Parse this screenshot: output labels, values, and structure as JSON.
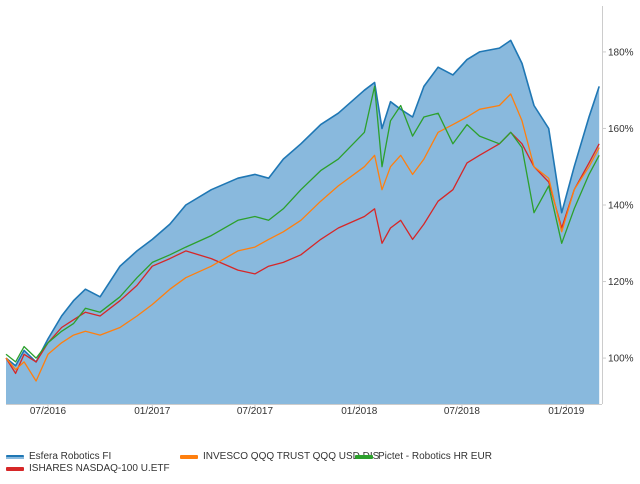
{
  "chart_data": {
    "type": "line",
    "title": "",
    "xlabel": "",
    "ylabel": "",
    "y_unit": "%",
    "ylim": [
      88,
      192
    ],
    "xlim": [
      "2016-04-18",
      "2019-03-05"
    ],
    "grid": false,
    "legend_position": "bottom",
    "x_ticks": [
      {
        "date": "2016-07-01",
        "label": "07/2016"
      },
      {
        "date": "2017-01-01",
        "label": "01/2017"
      },
      {
        "date": "2017-07-01",
        "label": "07/2017"
      },
      {
        "date": "2018-01-01",
        "label": "01/2018"
      },
      {
        "date": "2018-07-01",
        "label": "07/2018"
      },
      {
        "date": "2019-01-01",
        "label": "01/2019"
      }
    ],
    "y_ticks": [
      {
        "value": 100,
        "label": "100%"
      },
      {
        "value": 120,
        "label": "120%"
      },
      {
        "value": 140,
        "label": "140%"
      },
      {
        "value": 160,
        "label": "160%"
      },
      {
        "value": 180,
        "label": "180%"
      }
    ],
    "series": [
      {
        "name": "Esfera Robotics FI",
        "style": "area",
        "color": "#1f77b4",
        "fill": "#89b9dd",
        "x": [
          "2016-04-18",
          "2016-05-05",
          "2016-05-20",
          "2016-06-10",
          "2016-07-01",
          "2016-07-25",
          "2016-08-15",
          "2016-09-05",
          "2016-10-01",
          "2016-11-05",
          "2016-12-05",
          "2017-01-01",
          "2017-02-01",
          "2017-03-01",
          "2017-04-15",
          "2017-06-01",
          "2017-07-01",
          "2017-07-25",
          "2017-08-20",
          "2017-09-20",
          "2017-10-25",
          "2017-11-25",
          "2018-01-10",
          "2018-01-28",
          "2018-02-10",
          "2018-02-25",
          "2018-03-15",
          "2018-04-05",
          "2018-04-25",
          "2018-05-20",
          "2018-06-15",
          "2018-07-10",
          "2018-08-01",
          "2018-09-05",
          "2018-09-25",
          "2018-10-15",
          "2018-11-05",
          "2018-12-01",
          "2018-12-24",
          "2019-01-15",
          "2019-02-10",
          "2019-02-28"
        ],
        "y": [
          100,
          98,
          102,
          99,
          105,
          111,
          115,
          118,
          116,
          124,
          128,
          131,
          135,
          140,
          144,
          147,
          148,
          147,
          152,
          156,
          161,
          164,
          170,
          172,
          160,
          167,
          165,
          163,
          171,
          176,
          174,
          178,
          180,
          181,
          183,
          177,
          166,
          160,
          138,
          150,
          163,
          171
        ]
      },
      {
        "name": "ISHARES NASDAQ-100 U.ETF",
        "style": "line",
        "color": "#d62728",
        "x": [
          "2016-04-18",
          "2016-05-05",
          "2016-05-20",
          "2016-06-10",
          "2016-07-01",
          "2016-07-25",
          "2016-08-15",
          "2016-09-05",
          "2016-10-01",
          "2016-11-05",
          "2016-12-05",
          "2017-01-01",
          "2017-02-01",
          "2017-03-01",
          "2017-04-15",
          "2017-06-01",
          "2017-07-01",
          "2017-07-25",
          "2017-08-20",
          "2017-09-20",
          "2017-10-25",
          "2017-11-25",
          "2018-01-10",
          "2018-01-28",
          "2018-02-10",
          "2018-02-25",
          "2018-03-15",
          "2018-04-05",
          "2018-04-25",
          "2018-05-20",
          "2018-06-15",
          "2018-07-10",
          "2018-08-01",
          "2018-09-05",
          "2018-09-25",
          "2018-10-15",
          "2018-11-05",
          "2018-12-01",
          "2018-12-24",
          "2019-01-15",
          "2019-02-10",
          "2019-02-28"
        ],
        "y": [
          100,
          96,
          101,
          99,
          104,
          108,
          110,
          112,
          111,
          115,
          119,
          124,
          126,
          128,
          126,
          123,
          122,
          124,
          125,
          127,
          131,
          134,
          137,
          139,
          130,
          134,
          136,
          131,
          135,
          141,
          144,
          151,
          153,
          156,
          159,
          156,
          150,
          146,
          134,
          144,
          151,
          156
        ]
      },
      {
        "name": "INVESCO QQQ TRUST QQQ USD DIS",
        "style": "line",
        "color": "#ff7f0e",
        "x": [
          "2016-04-18",
          "2016-05-05",
          "2016-05-20",
          "2016-06-10",
          "2016-07-01",
          "2016-07-25",
          "2016-08-15",
          "2016-09-05",
          "2016-10-01",
          "2016-11-05",
          "2016-12-05",
          "2017-01-01",
          "2017-02-01",
          "2017-03-01",
          "2017-04-15",
          "2017-06-01",
          "2017-07-01",
          "2017-07-25",
          "2017-08-20",
          "2017-09-20",
          "2017-10-25",
          "2017-11-25",
          "2018-01-10",
          "2018-01-28",
          "2018-02-10",
          "2018-02-25",
          "2018-03-15",
          "2018-04-05",
          "2018-04-25",
          "2018-05-20",
          "2018-06-15",
          "2018-07-10",
          "2018-08-01",
          "2018-09-05",
          "2018-09-25",
          "2018-10-15",
          "2018-11-05",
          "2018-12-01",
          "2018-12-24",
          "2019-01-15",
          "2019-02-10",
          "2019-02-28"
        ],
        "y": [
          100,
          97,
          99,
          94,
          101,
          104,
          106,
          107,
          106,
          108,
          111,
          114,
          118,
          121,
          124,
          128,
          129,
          131,
          133,
          136,
          141,
          145,
          150,
          153,
          144,
          150,
          153,
          148,
          152,
          159,
          161,
          163,
          165,
          166,
          169,
          162,
          150,
          147,
          133,
          144,
          150,
          155
        ]
      },
      {
        "name": "Pictet - Robotics HR EUR",
        "style": "line",
        "color": "#2ca02c",
        "x": [
          "2016-04-18",
          "2016-05-05",
          "2016-05-20",
          "2016-06-10",
          "2016-07-01",
          "2016-07-25",
          "2016-08-15",
          "2016-09-05",
          "2016-10-01",
          "2016-11-05",
          "2016-12-05",
          "2017-01-01",
          "2017-02-01",
          "2017-03-01",
          "2017-04-15",
          "2017-06-01",
          "2017-07-01",
          "2017-07-25",
          "2017-08-20",
          "2017-09-20",
          "2017-10-25",
          "2017-11-25",
          "2018-01-10",
          "2018-01-28",
          "2018-02-10",
          "2018-02-25",
          "2018-03-15",
          "2018-04-05",
          "2018-04-25",
          "2018-05-20",
          "2018-06-15",
          "2018-07-10",
          "2018-08-01",
          "2018-09-05",
          "2018-09-25",
          "2018-10-15",
          "2018-11-05",
          "2018-12-01",
          "2018-12-24",
          "2019-01-15",
          "2019-02-10",
          "2019-02-28"
        ],
        "y": [
          101,
          99,
          103,
          100,
          104,
          107,
          109,
          113,
          112,
          116,
          121,
          125,
          127,
          129,
          132,
          136,
          137,
          136,
          139,
          144,
          149,
          152,
          159,
          171,
          150,
          162,
          166,
          158,
          163,
          164,
          156,
          161,
          158,
          156,
          159,
          155,
          138,
          145,
          130,
          139,
          148,
          153
        ]
      }
    ]
  }
}
